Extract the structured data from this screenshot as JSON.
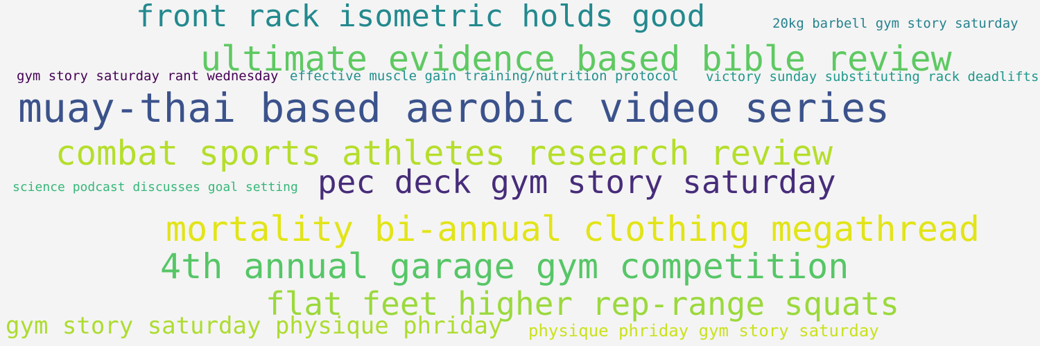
{
  "word_cloud": {
    "phrases": [
      {
        "text": "front rack isometric holds good",
        "color": "#23898e"
      },
      {
        "text": "20kg barbell gym story saturday",
        "color": "#26828e"
      },
      {
        "text": "ultimate evidence based bible review",
        "color": "#5ec962"
      },
      {
        "text": "gym story saturday rant wednesday",
        "color": "#440154"
      },
      {
        "text": "effective muscle gain training/nutrition protocol",
        "color": "#218f8d"
      },
      {
        "text": "victory sunday substituting rack deadlifts",
        "color": "#1f988b"
      },
      {
        "text": "muay-thai based aerobic video series",
        "color": "#3b528b"
      },
      {
        "text": "combat sports athletes research review",
        "color": "#b5de2b"
      },
      {
        "text": "science podcast discusses goal setting",
        "color": "#35b779"
      },
      {
        "text": "pec deck gym story saturday",
        "color": "#472c7a"
      },
      {
        "text": "mortality bi-annual clothing megathread",
        "color": "#e2e418"
      },
      {
        "text": "4th annual garage gym competition",
        "color": "#56c667"
      },
      {
        "text": "flat feet higher rep-range squats",
        "color": "#9bd93c"
      },
      {
        "text": "gym story saturday physique phriday",
        "color": "#addc30"
      },
      {
        "text": "physique phriday gym story saturday",
        "color": "#cae11f"
      }
    ]
  }
}
